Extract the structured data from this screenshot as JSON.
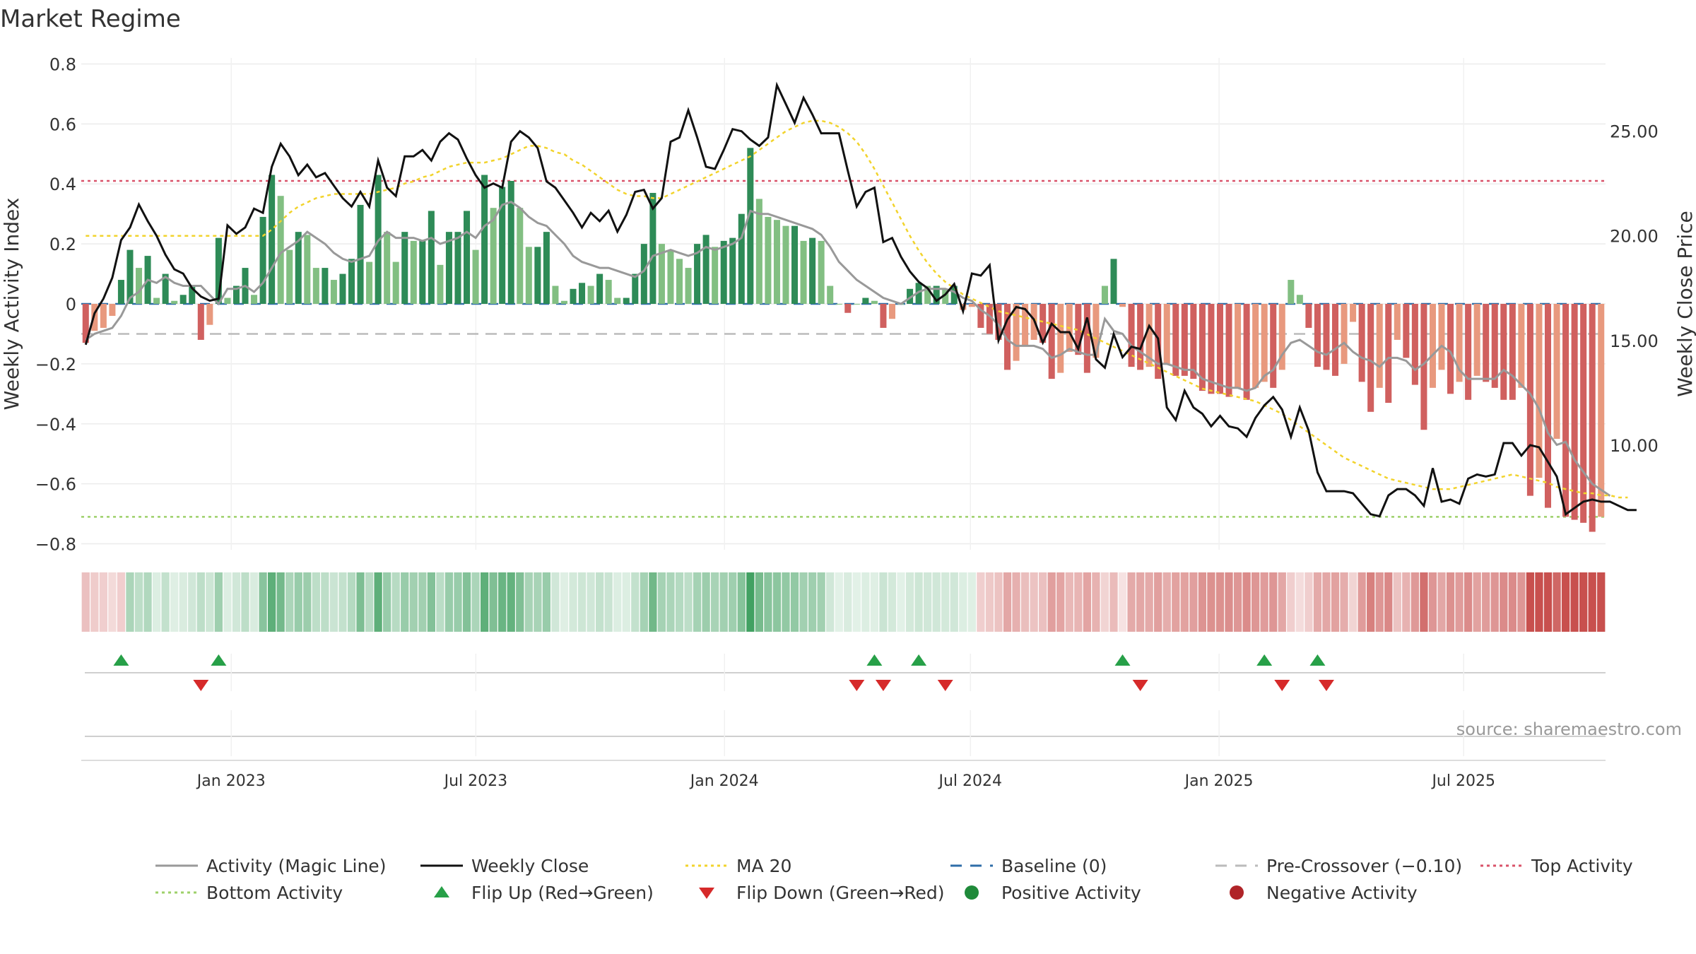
{
  "chart_data": {
    "type": "bar+line",
    "title": "Market Regime",
    "ylabel_left": "Weekly Activity Index",
    "ylabel_right": "Weekly Close Price",
    "source": "source: sharemaestro.com",
    "ylim_left": [
      -0.82,
      0.82
    ],
    "ylim_right": [
      5,
      28.5
    ],
    "yticks_left": [
      0.8,
      0.6,
      0.4,
      0.2,
      0,
      -0.2,
      -0.4,
      -0.6,
      -0.8
    ],
    "ytick_labels_left": [
      "0.8",
      "0.6",
      "0.4",
      "0.2",
      "0",
      "−0.2",
      "−0.4",
      "−0.6",
      "−0.8"
    ],
    "yticks_right": [
      25,
      20,
      15,
      10
    ],
    "ytick_labels_right": [
      "25.00",
      "20.00",
      "15.00",
      "10.00"
    ],
    "x_start": "2022-09-12",
    "x_end": "2025-10-14",
    "xticks": [
      "2023-01-01",
      "2023-07-01",
      "2024-01-01",
      "2024-07-01",
      "2025-01-01",
      "2025-07-01"
    ],
    "xtick_labels": [
      "Jan 2023",
      "Jul 2023",
      "Jan 2024",
      "Jul 2024",
      "Jan 2025",
      "Jul 2025"
    ],
    "top_activity": 0.41,
    "bottom_activity": -0.71,
    "pre_crossover": -0.1,
    "baseline": 0,
    "activity": [
      -0.13,
      -0.09,
      -0.08,
      -0.04,
      0.08,
      0.18,
      0.12,
      0.16,
      0.02,
      0.1,
      0.01,
      0.03,
      0.06,
      -0.12,
      -0.07,
      0.22,
      0.02,
      0.06,
      0.12,
      0.03,
      0.29,
      0.43,
      0.36,
      0.18,
      0.24,
      0.23,
      0.12,
      0.12,
      0.08,
      0.1,
      0.15,
      0.33,
      0.14,
      0.43,
      0.24,
      0.14,
      0.24,
      0.21,
      0.21,
      0.31,
      0.13,
      0.24,
      0.24,
      0.31,
      0.18,
      0.43,
      0.32,
      0.39,
      0.41,
      0.32,
      0.19,
      0.19,
      0.24,
      0.06,
      0.01,
      0.05,
      0.07,
      0.06,
      0.1,
      0.08,
      0.02,
      0.02,
      0.1,
      0.2,
      0.37,
      0.2,
      0.18,
      0.15,
      0.12,
      0.2,
      0.23,
      0.19,
      0.21,
      0.22,
      0.3,
      0.52,
      0.35,
      0.29,
      0.28,
      0.26,
      0.26,
      0.21,
      0.22,
      0.21,
      0.06,
      0.0,
      -0.03,
      0.0,
      0.02,
      0.01,
      -0.08,
      -0.05,
      0.0,
      0.05,
      0.07,
      0.06,
      0.06,
      0.05,
      0.06,
      -0.02,
      -0.01,
      -0.08,
      -0.1,
      -0.12,
      -0.22,
      -0.19,
      -0.14,
      -0.12,
      -0.13,
      -0.25,
      -0.23,
      -0.16,
      -0.17,
      -0.23,
      -0.18,
      0.06,
      0.15,
      -0.01,
      -0.21,
      -0.22,
      -0.21,
      -0.25,
      -0.2,
      -0.24,
      -0.24,
      -0.25,
      -0.29,
      -0.3,
      -0.3,
      -0.31,
      -0.28,
      -0.32,
      -0.28,
      -0.26,
      -0.28,
      -0.22,
      0.08,
      0.03,
      -0.08,
      -0.21,
      -0.22,
      -0.24,
      -0.2,
      -0.06,
      -0.26,
      -0.36,
      -0.28,
      -0.33,
      -0.12,
      -0.18,
      -0.27,
      -0.42,
      -0.28,
      -0.22,
      -0.3,
      -0.26,
      -0.32,
      -0.24,
      -0.26,
      -0.28,
      -0.32,
      -0.32,
      -0.28,
      -0.64,
      -0.58,
      -0.68,
      -0.45,
      -0.71,
      -0.72,
      -0.73,
      -0.76,
      -0.71
    ],
    "magic_line": [
      -0.12,
      -0.1,
      -0.09,
      -0.08,
      -0.04,
      0.02,
      0.04,
      0.08,
      0.07,
      0.09,
      0.07,
      0.06,
      0.06,
      0.06,
      0.03,
      0.0,
      0.05,
      0.05,
      0.06,
      0.04,
      0.07,
      0.12,
      0.17,
      0.19,
      0.21,
      0.24,
      0.22,
      0.2,
      0.17,
      0.15,
      0.14,
      0.15,
      0.16,
      0.21,
      0.24,
      0.22,
      0.22,
      0.22,
      0.21,
      0.22,
      0.2,
      0.21,
      0.22,
      0.24,
      0.22,
      0.26,
      0.28,
      0.33,
      0.34,
      0.32,
      0.29,
      0.27,
      0.26,
      0.23,
      0.2,
      0.16,
      0.14,
      0.13,
      0.12,
      0.12,
      0.11,
      0.1,
      0.09,
      0.11,
      0.16,
      0.17,
      0.18,
      0.17,
      0.16,
      0.17,
      0.19,
      0.18,
      0.19,
      0.2,
      0.22,
      0.31,
      0.3,
      0.3,
      0.29,
      0.28,
      0.27,
      0.26,
      0.25,
      0.23,
      0.19,
      0.14,
      0.11,
      0.08,
      0.06,
      0.04,
      0.02,
      0.01,
      0.0,
      0.02,
      0.04,
      0.05,
      0.05,
      0.05,
      0.04,
      0.02,
      0.01,
      -0.02,
      -0.04,
      -0.07,
      -0.12,
      -0.14,
      -0.14,
      -0.14,
      -0.15,
      -0.18,
      -0.17,
      -0.15,
      -0.16,
      -0.17,
      -0.17,
      -0.05,
      -0.09,
      -0.1,
      -0.14,
      -0.16,
      -0.18,
      -0.2,
      -0.2,
      -0.21,
      -0.22,
      -0.22,
      -0.25,
      -0.26,
      -0.27,
      -0.28,
      -0.28,
      -0.29,
      -0.28,
      -0.24,
      -0.22,
      -0.17,
      -0.13,
      -0.12,
      -0.14,
      -0.16,
      -0.17,
      -0.15,
      -0.13,
      -0.16,
      -0.18,
      -0.19,
      -0.21,
      -0.18,
      -0.18,
      -0.19,
      -0.22,
      -0.2,
      -0.17,
      -0.14,
      -0.16,
      -0.22,
      -0.25,
      -0.25,
      -0.25,
      -0.25,
      -0.22,
      -0.24,
      -0.27,
      -0.3,
      -0.35,
      -0.43,
      -0.47,
      -0.46,
      -0.52,
      -0.56,
      -0.6,
      -0.62,
      -0.64
    ],
    "close": [
      14.8,
      16.3,
      17.0,
      18.0,
      19.8,
      20.4,
      21.5,
      20.7,
      20.0,
      19.1,
      18.4,
      18.2,
      17.5,
      17.1,
      16.9,
      17.0,
      20.5,
      20.1,
      20.4,
      21.3,
      21.1,
      23.3,
      24.4,
      23.8,
      22.9,
      23.4,
      22.8,
      23.0,
      22.4,
      21.8,
      21.4,
      22.1,
      21.4,
      23.6,
      22.3,
      21.9,
      23.8,
      23.8,
      24.1,
      23.6,
      24.5,
      24.9,
      24.6,
      23.7,
      22.9,
      22.3,
      22.5,
      22.3,
      24.5,
      25.0,
      24.7,
      24.2,
      22.6,
      22.3,
      21.7,
      21.1,
      20.4,
      21.1,
      20.7,
      21.2,
      20.2,
      21.0,
      22.1,
      22.2,
      21.3,
      21.8,
      24.5,
      24.7,
      26.0,
      24.7,
      23.3,
      23.2,
      24.1,
      25.1,
      25.0,
      24.6,
      24.3,
      24.7,
      27.2,
      26.3,
      25.4,
      26.6,
      25.8,
      24.9,
      24.9,
      24.9,
      23.1,
      21.4,
      22.1,
      22.3,
      19.7,
      19.9,
      19.0,
      18.3,
      17.8,
      17.5,
      16.9,
      17.2,
      17.7,
      16.4,
      18.2,
      18.1,
      18.6,
      15.0,
      16.0,
      16.6,
      16.5,
      16.0,
      14.9,
      15.8,
      15.4,
      15.4,
      14.6,
      16.1,
      14.1,
      13.7,
      15.3,
      14.2,
      14.7,
      14.6,
      15.7,
      15.1,
      11.8,
      11.2,
      12.6,
      11.8,
      11.5,
      10.9,
      11.4,
      10.9,
      10.8,
      10.4,
      11.3,
      11.9,
      12.3,
      11.7,
      10.4,
      11.8,
      10.7,
      8.7,
      7.8,
      7.8,
      7.8,
      7.7,
      7.2,
      6.7,
      6.6,
      7.6,
      7.9,
      7.9,
      7.6,
      7.1,
      8.9,
      7.3,
      7.4,
      7.2,
      8.4,
      8.6,
      8.5,
      8.6,
      10.1,
      10.1,
      9.5,
      10.0,
      9.9,
      9.2,
      8.5,
      6.7,
      7.0,
      7.3,
      7.4,
      7.3,
      7.3,
      7.1,
      6.9,
      6.9
    ],
    "ma20": [
      20.0,
      20.0,
      20.0,
      20.0,
      20.0,
      20.0,
      20.0,
      20.0,
      20.0,
      20.0,
      20.0,
      20.0,
      20.0,
      20.0,
      20.0,
      20.0,
      20.0,
      20.0,
      20.0,
      20.0,
      20.0,
      20.3,
      20.7,
      21.1,
      21.4,
      21.6,
      21.8,
      21.9,
      22.0,
      22.0,
      22.0,
      22.0,
      22.0,
      22.1,
      22.2,
      22.3,
      22.5,
      22.6,
      22.8,
      22.9,
      23.1,
      23.3,
      23.4,
      23.5,
      23.5,
      23.5,
      23.6,
      23.7,
      23.9,
      24.1,
      24.3,
      24.3,
      24.2,
      24.0,
      23.9,
      23.6,
      23.4,
      23.1,
      22.8,
      22.5,
      22.2,
      22.0,
      21.9,
      21.9,
      21.8,
      21.8,
      22.0,
      22.2,
      22.4,
      22.6,
      22.8,
      23.0,
      23.2,
      23.4,
      23.6,
      23.8,
      24.1,
      24.4,
      24.7,
      25.0,
      25.2,
      25.4,
      25.5,
      25.5,
      25.4,
      25.2,
      24.9,
      24.5,
      23.9,
      23.2,
      22.4,
      21.6,
      20.8,
      20.0,
      19.3,
      18.7,
      18.2,
      17.8,
      17.5,
      17.2,
      17.0,
      16.8,
      16.6,
      16.4,
      16.3,
      16.2,
      16.1,
      16.0,
      15.9,
      15.8,
      15.7,
      15.6,
      15.5,
      15.3,
      15.1,
      14.9,
      14.7,
      14.5,
      14.3,
      14.1,
      13.9,
      13.7,
      13.5,
      13.3,
      13.1,
      12.9,
      12.7,
      12.6,
      12.5,
      12.4,
      12.3,
      12.2,
      12.1,
      11.9,
      11.7,
      11.5,
      11.2,
      10.9,
      10.6,
      10.3,
      10.0,
      9.7,
      9.4,
      9.2,
      9.0,
      8.8,
      8.6,
      8.4,
      8.3,
      8.2,
      8.1,
      8.0,
      7.9,
      7.9,
      7.9,
      8.0,
      8.1,
      8.2,
      8.3,
      8.4,
      8.5,
      8.6,
      8.5,
      8.4,
      8.3,
      8.2,
      8.0,
      7.9,
      7.8,
      7.7,
      7.7,
      7.6,
      7.6,
      7.5,
      7.5
    ],
    "flip_up_weeks": [
      4,
      15,
      89,
      94,
      117,
      133,
      139
    ],
    "flip_down_weeks": [
      13,
      87,
      90,
      97,
      119,
      135,
      140
    ],
    "legend": [
      {
        "label": "Activity (Magic Line)",
        "symbol": "line",
        "color": "#999999"
      },
      {
        "label": "Weekly Close",
        "symbol": "line",
        "color": "#111111"
      },
      {
        "label": "MA 20",
        "symbol": "dotted",
        "color": "#f2d32c"
      },
      {
        "label": "Baseline (0)",
        "symbol": "dashed",
        "color": "#2f6ea8"
      },
      {
        "label": "Pre-Crossover (−0.10)",
        "symbol": "dashed",
        "color": "#bbbbbb"
      },
      {
        "label": "Top Activity",
        "symbol": "dotted",
        "color": "#d9536a"
      },
      {
        "label": "Bottom Activity",
        "symbol": "dotted",
        "color": "#9ed06a"
      },
      {
        "label": "Flip Up (Red→Green)",
        "symbol": "triangle-up",
        "color": "#27a048"
      },
      {
        "label": "Flip Down (Green→Red)",
        "symbol": "triangle-down",
        "color": "#d62a2a"
      },
      {
        "label": "Positive Activity",
        "symbol": "circle",
        "color": "#1f8a3a"
      },
      {
        "label": "Negative Activity",
        "symbol": "circle",
        "color": "#b02428"
      }
    ],
    "colors": {
      "pos_strong": "#2e8b57",
      "pos_weak": "#82bf82",
      "neg_strong": "#d0605f",
      "neg_weak": "#e8997e"
    }
  }
}
